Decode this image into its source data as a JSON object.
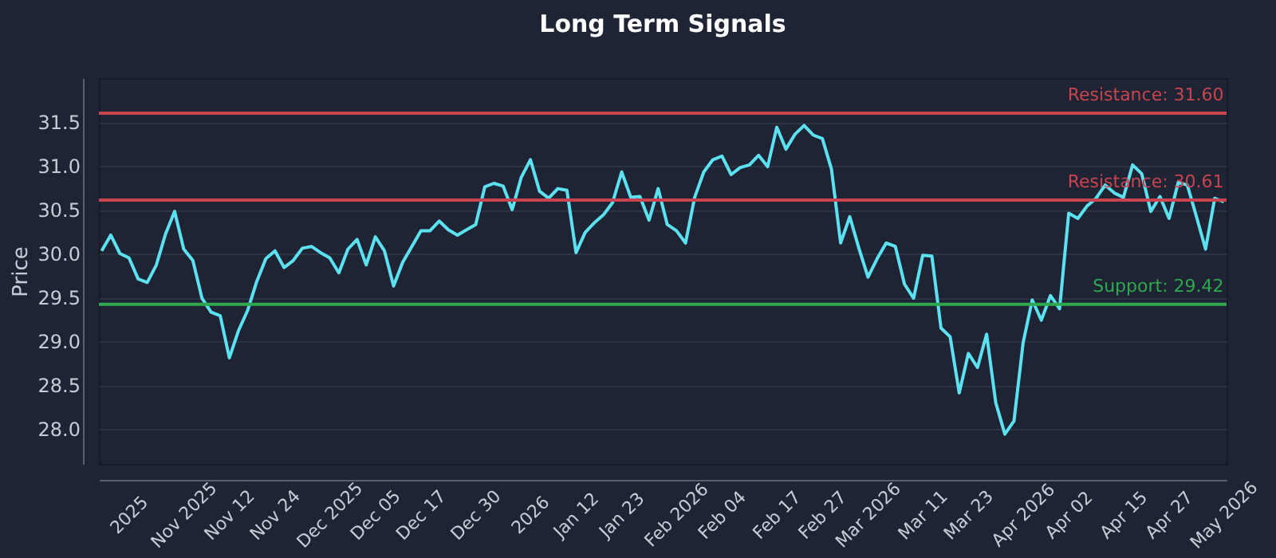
{
  "chart_data": {
    "type": "line",
    "title": "Long Term Signals",
    "ylabel": "Price",
    "categories": [
      null,
      null,
      null,
      "2025",
      null,
      null,
      null,
      null,
      null,
      "Nov 2025",
      null,
      null,
      null,
      null,
      "Nov 12",
      null,
      null,
      null,
      null,
      "Nov 24",
      null,
      null,
      null,
      null,
      null,
      "Dec 2025",
      null,
      null,
      null,
      null,
      "Dec 05",
      null,
      null,
      null,
      null,
      "Dec 17",
      null,
      null,
      null,
      null,
      null,
      "Dec 30",
      null,
      null,
      null,
      null,
      null,
      "2026",
      null,
      null,
      null,
      null,
      "Jan 12",
      null,
      null,
      null,
      null,
      "Jan 23",
      null,
      null,
      null,
      null,
      null,
      "Feb 2026",
      null,
      null,
      null,
      null,
      "Feb 04",
      null,
      null,
      null,
      null,
      null,
      "Feb 17",
      null,
      null,
      null,
      null,
      "Feb 27",
      null,
      null,
      null,
      null,
      "Mar 2026",
      null,
      null,
      null,
      null,
      null,
      "Mar 11",
      null,
      null,
      null,
      null,
      "Mar 23",
      null,
      null,
      null,
      null,
      null,
      "Apr 2026",
      null,
      null,
      null,
      null,
      "Apr 02",
      null,
      null,
      null,
      null,
      null,
      "Apr 15",
      null,
      null,
      null,
      null,
      "Apr 27",
      null,
      null,
      null,
      null,
      null,
      "May 2026"
    ],
    "series": [
      {
        "color": "#5ce1f0",
        "values": [
          30.03,
          30.21,
          30.0,
          29.95,
          29.71,
          29.67,
          29.87,
          30.22,
          30.48,
          30.05,
          29.92,
          29.49,
          29.33,
          29.29,
          28.81,
          29.12,
          29.35,
          29.68,
          29.94,
          30.03,
          29.84,
          29.92,
          30.06,
          30.08,
          30.01,
          29.95,
          29.78,
          30.05,
          30.16,
          29.87,
          30.19,
          30.03,
          29.63,
          29.9,
          30.08,
          30.26,
          30.26,
          30.37,
          30.27,
          30.21,
          30.27,
          30.33,
          30.76,
          30.8,
          30.77,
          30.5,
          30.87,
          31.07,
          30.71,
          30.63,
          30.74,
          30.72,
          30.01,
          30.24,
          30.35,
          30.44,
          30.58,
          30.93,
          30.64,
          30.65,
          30.38,
          30.74,
          30.33,
          30.26,
          30.12,
          30.64,
          30.93,
          31.07,
          31.11,
          30.9,
          30.98,
          31.01,
          31.12,
          30.99,
          31.44,
          31.19,
          31.36,
          31.46,
          31.35,
          31.31,
          30.96,
          30.12,
          30.42,
          30.06,
          29.73,
          29.94,
          30.12,
          30.08,
          29.65,
          29.49,
          29.98,
          29.97,
          29.15,
          29.05,
          28.41,
          28.86,
          28.7,
          29.08,
          28.3,
          27.94,
          28.09,
          28.98,
          29.47,
          29.24,
          29.52,
          29.37,
          30.46,
          30.4,
          30.54,
          30.63,
          30.78,
          30.69,
          30.64,
          31.01,
          30.91,
          30.48,
          30.65,
          30.4,
          30.81,
          30.78,
          30.42,
          30.05,
          30.63,
          30.59
        ]
      }
    ],
    "ylim": [
      27.6,
      32.0
    ],
    "yticks": [
      {
        "value": 28,
        "label": "28.0"
      },
      {
        "value": 28.5,
        "label": "28.5"
      },
      {
        "value": 29,
        "label": "29.0"
      },
      {
        "value": 29.5,
        "label": "29.5"
      },
      {
        "value": 30,
        "label": "30.0"
      },
      {
        "value": 30.5,
        "label": "30.5"
      },
      {
        "value": 31,
        "label": "31.0"
      },
      {
        "value": 31.5,
        "label": "31.5"
      }
    ],
    "ref_lines": [
      {
        "axis": "y",
        "value": 31.6,
        "label": "Resistance: 31.60",
        "color": "#c9444f"
      },
      {
        "axis": "y",
        "value": 30.61,
        "label": "Resistance: 30.61",
        "color": "#c9444f"
      },
      {
        "axis": "y",
        "value": 29.42,
        "label": "Support: 29.42",
        "color": "#2fa84f"
      }
    ],
    "grid": "y",
    "line_style": "solid"
  }
}
